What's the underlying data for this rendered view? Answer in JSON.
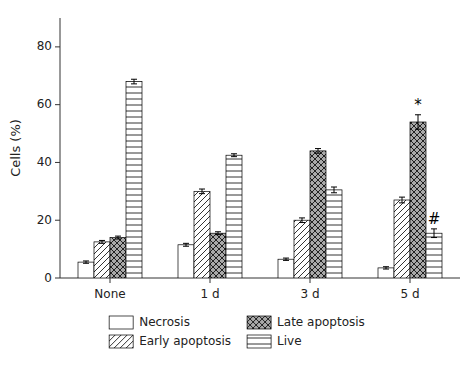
{
  "chart_data": {
    "type": "bar",
    "categories": [
      "None",
      "1 d",
      "3 d",
      "5 d"
    ],
    "ylabel": "Cells (%)",
    "ylim": [
      0,
      90
    ],
    "yticks": [
      0,
      20,
      40,
      60,
      80
    ],
    "grid": false,
    "legend": "bottom",
    "series": [
      {
        "name": "Necrosis",
        "color": "white",
        "values": [
          5.5,
          11.5,
          6.5,
          3.5
        ],
        "errors": [
          0.4,
          0.5,
          0.4,
          0.4
        ]
      },
      {
        "name": "Early apoptosis",
        "color": "white",
        "values": [
          12.5,
          30.0,
          20.0,
          27.0
        ],
        "errors": [
          0.5,
          0.8,
          0.8,
          1.0
        ]
      },
      {
        "name": "Late apoptosis",
        "color": "darkgray",
        "values": [
          14.0,
          15.5,
          44.0,
          54.0
        ],
        "errors": [
          0.5,
          0.5,
          0.8,
          2.5
        ]
      },
      {
        "name": "Live",
        "color": "white",
        "values": [
          68.0,
          42.5,
          30.5,
          15.5
        ],
        "errors": [
          0.8,
          0.5,
          1.0,
          1.5
        ]
      }
    ],
    "annotations": [
      {
        "text": "*",
        "series": "Late apoptosis",
        "category": "5 d"
      },
      {
        "text": "#",
        "series": "Live",
        "category": "5 d"
      }
    ]
  }
}
